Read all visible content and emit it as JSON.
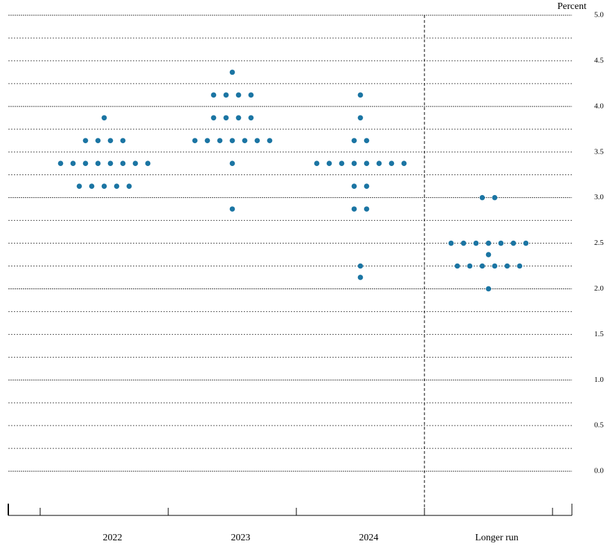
{
  "chart_data": {
    "type": "dot",
    "y_label": "Percent",
    "categories": [
      "2022",
      "2023",
      "2024",
      "Longer run"
    ],
    "color": "#1b75a3",
    "dots": [
      [
        {
          "value": 3.875,
          "count": 1
        },
        {
          "value": 3.625,
          "count": 4
        },
        {
          "value": 3.375,
          "count": 8
        },
        {
          "value": 3.125,
          "count": 5
        }
      ],
      [
        {
          "value": 4.375,
          "count": 1
        },
        {
          "value": 4.125,
          "count": 4
        },
        {
          "value": 3.875,
          "count": 4
        },
        {
          "value": 3.625,
          "count": 7
        },
        {
          "value": 3.375,
          "count": 1
        },
        {
          "value": 2.875,
          "count": 1
        }
      ],
      [
        {
          "value": 4.125,
          "count": 1
        },
        {
          "value": 3.875,
          "count": 1
        },
        {
          "value": 3.625,
          "count": 2
        },
        {
          "value": 3.375,
          "count": 8
        },
        {
          "value": 3.125,
          "count": 2
        },
        {
          "value": 2.875,
          "count": 2
        },
        {
          "value": 2.25,
          "count": 1
        },
        {
          "value": 2.125,
          "count": 1
        }
      ],
      [
        {
          "value": 3.0,
          "count": 2
        },
        {
          "value": 2.5,
          "count": 7
        },
        {
          "value": 2.375,
          "count": 1
        },
        {
          "value": 2.25,
          "count": 6
        },
        {
          "value": 2.0,
          "count": 1
        }
      ]
    ],
    "ylim": [
      -0.5,
      5.0
    ],
    "yticks": [
      {
        "value": 0,
        "label": "0.0"
      },
      {
        "value": 0.5,
        "label": "0.5"
      },
      {
        "value": 1,
        "label": "1.0"
      },
      {
        "value": 1.5,
        "label": "1.5"
      },
      {
        "value": 2,
        "label": "2.0"
      },
      {
        "value": 2.5,
        "label": "2.5"
      },
      {
        "value": 3,
        "label": "3.0"
      },
      {
        "value": 3.5,
        "label": "3.5"
      },
      {
        "value": 4,
        "label": "4.0"
      },
      {
        "value": 4.5,
        "label": "4.5"
      },
      {
        "value": 5,
        "label": "5.0"
      }
    ],
    "grid": true
  }
}
